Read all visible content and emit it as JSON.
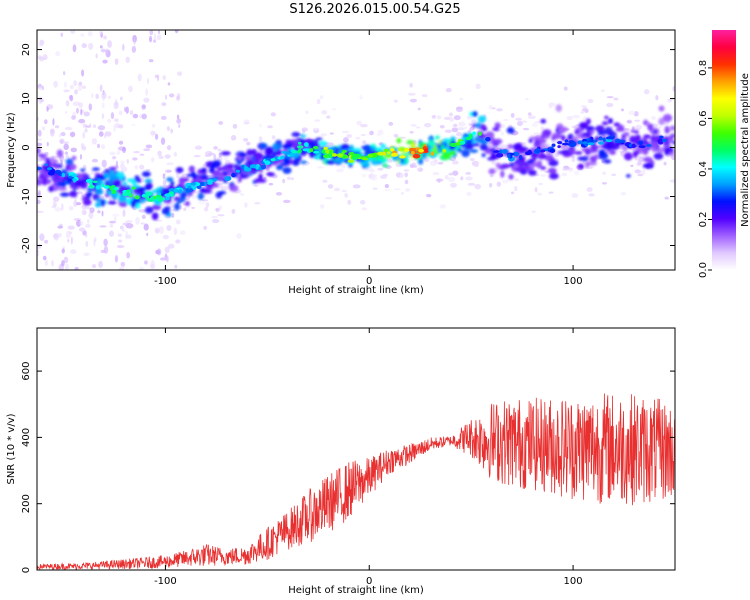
{
  "title": "S126.2026.015.00.54.G25",
  "chart_data": [
    {
      "type": "heatmap",
      "title": "S126.2026.015.00.54.G25",
      "xlabel": "Height of straight line (km)",
      "ylabel": "Frequency (Hz)",
      "xlim": [
        -163,
        150
      ],
      "ylim": [
        -25,
        24
      ],
      "xticks": [
        -100,
        0,
        100
      ],
      "xtick_labels": [
        "-100",
        "0",
        "100"
      ],
      "yticks": [
        -20,
        -10,
        0,
        10,
        20
      ],
      "ytick_labels": [
        "-20",
        "-10",
        "0",
        "10",
        "20"
      ],
      "ridge": {
        "x": [
          -160,
          -140,
          -120,
          -110,
          -100,
          -90,
          -80,
          -70,
          -60,
          -50,
          -40,
          -30,
          -20,
          -10,
          0,
          10,
          20,
          30,
          40,
          45,
          55,
          60,
          70,
          80,
          90,
          100,
          110,
          120,
          130,
          140,
          148
        ],
        "y": [
          -4,
          -7,
          -9,
          -10,
          -10,
          -8,
          -7,
          -6,
          -4,
          -3,
          -1,
          0,
          -1,
          -2,
          -2,
          -1,
          -1,
          -0.5,
          0,
          1,
          3,
          0,
          -2,
          -1,
          0,
          1,
          1,
          2,
          0,
          1,
          2
        ],
        "amplitude": [
          0.3,
          0.45,
          0.5,
          0.55,
          0.45,
          0.4,
          0.4,
          0.35,
          0.4,
          0.4,
          0.45,
          0.5,
          0.65,
          0.6,
          0.6,
          0.75,
          0.85,
          0.8,
          0.7,
          0.55,
          0.5,
          0.3,
          0.35,
          0.3,
          0.3,
          0.3,
          0.35,
          0.35,
          0.3,
          0.3,
          0.3
        ]
      },
      "colorbar": {
        "label": "Normalized spectral amplitude",
        "range": [
          0.0,
          0.95
        ],
        "ticks": [
          0.0,
          0.2,
          0.4,
          0.6,
          0.8
        ],
        "tick_labels": [
          "0.0",
          "0.2",
          "0.4",
          "0.6",
          "0.8"
        ],
        "colors": [
          "#ffffff",
          "#e0c8ff",
          "#a060ff",
          "#5000ff",
          "#0010ff",
          "#00a0ff",
          "#00ffff",
          "#00ff60",
          "#40ff00",
          "#c0ff00",
          "#ffff00",
          "#ffa000",
          "#ff3000",
          "#ff0040",
          "#ff20a0"
        ]
      }
    },
    {
      "type": "line",
      "xlabel": "Height of straight line (km)",
      "ylabel": "SNR (10 * v/v)",
      "xlim": [
        -163,
        150
      ],
      "ylim": [
        0,
        730
      ],
      "xticks": [
        -100,
        0,
        100
      ],
      "xtick_labels": [
        "-100",
        "0",
        "100"
      ],
      "yticks": [
        0,
        200,
        400,
        600
      ],
      "ytick_labels": [
        "0",
        "200",
        "400",
        "600"
      ],
      "color": "#e83030",
      "envelope": {
        "x": [
          -163,
          -140,
          -120,
          -100,
          -90,
          -80,
          -70,
          -60,
          -50,
          -40,
          -30,
          -20,
          -10,
          0,
          10,
          20,
          30,
          40,
          50,
          60,
          70,
          80,
          90,
          100,
          110,
          120,
          130,
          140,
          150
        ],
        "mean": [
          10,
          12,
          18,
          25,
          35,
          45,
          40,
          45,
          80,
          120,
          160,
          200,
          240,
          280,
          330,
          350,
          380,
          390,
          400,
          390,
          385,
          380,
          375,
          370,
          370,
          370,
          365,
          360,
          360
        ],
        "spread": [
          8,
          10,
          15,
          20,
          25,
          35,
          25,
          30,
          50,
          60,
          80,
          90,
          90,
          60,
          40,
          30,
          20,
          15,
          60,
          120,
          140,
          140,
          150,
          160,
          170,
          170,
          170,
          160,
          150
        ]
      }
    }
  ]
}
